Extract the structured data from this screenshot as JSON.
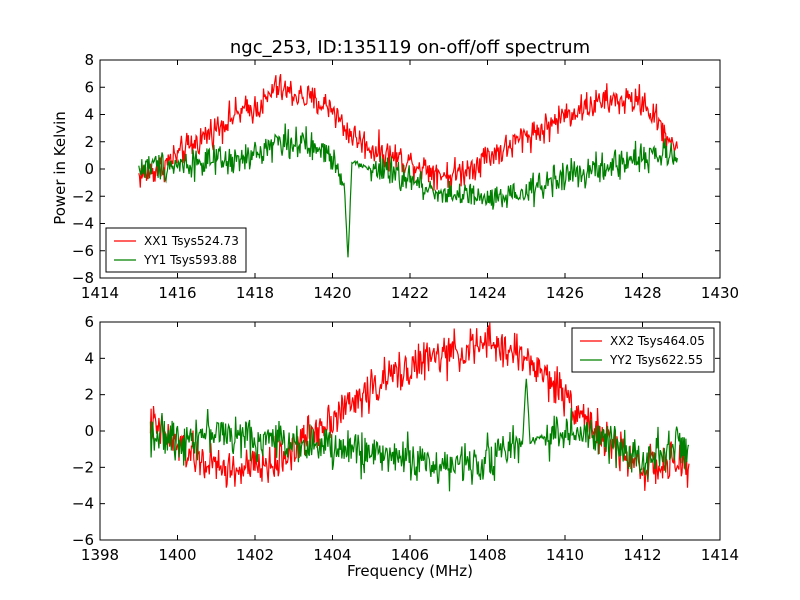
{
  "figure_title": "ngc_253, ID:135119 on-off/off spectrum",
  "shared_ylabel": "Power in Kelvin",
  "shared_xlabel": "Frequency (MHz)",
  "colors": {
    "xx": "#ff0000",
    "yy": "#008000",
    "axes": "#000000",
    "background": "#ffffff"
  },
  "chart_data": [
    {
      "type": "line",
      "title": "ngc_253, ID:135119 on-off/off spectrum",
      "xlabel": "",
      "ylabel": "Power in Kelvin",
      "xlim": [
        1414,
        1430
      ],
      "ylim": [
        -8,
        8
      ],
      "xticks": [
        1414,
        1416,
        1418,
        1420,
        1422,
        1424,
        1426,
        1428,
        1430
      ],
      "yticks": [
        -8,
        -6,
        -4,
        -2,
        0,
        2,
        4,
        6,
        8
      ],
      "grid": false,
      "legend_position": "lower-left",
      "series": [
        {
          "name": "XX1 Tsys524.73",
          "color": "#ff0000",
          "x": [
            1415.0,
            1415.5,
            1416.0,
            1416.5,
            1417.0,
            1417.5,
            1418.0,
            1418.3,
            1418.5,
            1419.0,
            1419.5,
            1420.0,
            1420.3,
            1420.5,
            1421.0,
            1421.5,
            1422.0,
            1422.5,
            1423.0,
            1423.5,
            1424.0,
            1424.5,
            1425.0,
            1425.5,
            1426.0,
            1426.5,
            1427.0,
            1427.5,
            1428.0,
            1428.5,
            1428.9
          ],
          "y": [
            -0.5,
            0.0,
            1.0,
            2.0,
            3.0,
            4.0,
            4.5,
            5.0,
            6.0,
            5.5,
            5.0,
            4.5,
            3.0,
            2.5,
            1.5,
            1.0,
            0.5,
            0.0,
            -0.5,
            0.0,
            1.0,
            1.5,
            2.5,
            3.0,
            4.0,
            4.5,
            5.0,
            5.0,
            5.0,
            3.0,
            1.5
          ]
        },
        {
          "name": "YY1 Tsys593.88",
          "color": "#008000",
          "x": [
            1415.0,
            1415.5,
            1416.0,
            1416.5,
            1417.0,
            1417.5,
            1418.0,
            1418.5,
            1419.0,
            1419.5,
            1420.0,
            1420.3,
            1420.4,
            1420.5,
            1421.0,
            1421.5,
            1422.0,
            1422.5,
            1423.0,
            1423.5,
            1424.0,
            1424.5,
            1425.0,
            1425.5,
            1426.0,
            1426.5,
            1427.0,
            1427.5,
            1428.0,
            1428.5,
            1428.9
          ],
          "y": [
            0.0,
            0.3,
            0.3,
            0.5,
            0.5,
            0.5,
            1.0,
            2.0,
            2.0,
            1.5,
            1.0,
            -1.0,
            -6.5,
            0.5,
            0.0,
            -0.3,
            -0.8,
            -1.5,
            -1.8,
            -2.0,
            -2.3,
            -2.2,
            -1.8,
            -1.0,
            -0.5,
            -0.3,
            0.0,
            0.5,
            1.0,
            1.0,
            0.8
          ]
        }
      ]
    },
    {
      "type": "line",
      "title": "",
      "xlabel": "Frequency (MHz)",
      "ylabel": "",
      "xlim": [
        1398,
        1414
      ],
      "ylim": [
        -6,
        6
      ],
      "xticks": [
        1398,
        1400,
        1402,
        1404,
        1406,
        1408,
        1410,
        1412,
        1414
      ],
      "yticks": [
        -6,
        -4,
        -2,
        0,
        2,
        4,
        6
      ],
      "grid": false,
      "legend_position": "upper-right",
      "series": [
        {
          "name": "XX2 Tsys464.05",
          "color": "#ff0000",
          "x": [
            1399.3,
            1399.5,
            1400.0,
            1400.5,
            1401.0,
            1401.5,
            1402.0,
            1402.5,
            1403.0,
            1403.5,
            1404.0,
            1404.5,
            1405.0,
            1405.5,
            1406.0,
            1406.5,
            1407.0,
            1407.5,
            1408.0,
            1408.5,
            1409.0,
            1409.5,
            1410.0,
            1410.5,
            1411.0,
            1411.5,
            1412.0,
            1412.5,
            1413.2
          ],
          "y": [
            0.5,
            0.0,
            -0.8,
            -1.5,
            -2.0,
            -2.2,
            -2.0,
            -1.8,
            -1.0,
            0.0,
            0.8,
            1.5,
            2.3,
            3.0,
            3.5,
            4.0,
            4.2,
            4.5,
            4.8,
            4.5,
            4.0,
            3.0,
            2.0,
            0.8,
            -0.5,
            -1.2,
            -2.0,
            -2.0,
            -1.8
          ]
        },
        {
          "name": "YY2 Tsys622.55",
          "color": "#008000",
          "x": [
            1399.3,
            1399.5,
            1400.0,
            1400.5,
            1401.0,
            1401.5,
            1402.0,
            1402.5,
            1403.0,
            1403.5,
            1404.0,
            1404.5,
            1405.0,
            1405.5,
            1406.0,
            1406.5,
            1407.0,
            1407.5,
            1408.0,
            1408.5,
            1408.9,
            1409.0,
            1409.1,
            1409.5,
            1410.0,
            1410.5,
            1411.0,
            1411.5,
            1412.0,
            1412.5,
            1413.2
          ],
          "y": [
            0.0,
            -0.3,
            -0.5,
            -0.2,
            0.0,
            -0.3,
            -0.5,
            -0.5,
            -0.5,
            -0.8,
            -1.0,
            -1.0,
            -1.2,
            -1.3,
            -1.5,
            -1.8,
            -2.0,
            -1.8,
            -1.5,
            -1.0,
            -0.8,
            3.0,
            -0.5,
            -0.3,
            0.0,
            -0.3,
            -0.5,
            -1.0,
            -1.5,
            -1.0,
            -0.8
          ]
        }
      ]
    }
  ]
}
